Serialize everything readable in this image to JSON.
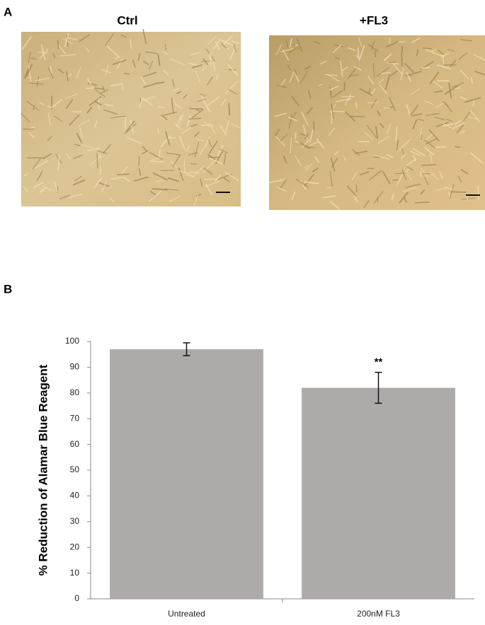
{
  "panel_a": {
    "label": "A",
    "images": [
      {
        "title": "Ctrl"
      },
      {
        "title": "+FL3"
      }
    ]
  },
  "panel_b": {
    "label": "B"
  },
  "chart_data": {
    "type": "bar",
    "y_label": "% Reduction of Alamar Blue Reagent",
    "categories": [
      "Untreated",
      "200nM FL3"
    ],
    "values": [
      97,
      82
    ],
    "errors": [
      2.5,
      6
    ],
    "annotation": "**",
    "color": "#aeaaaa",
    "ylim": [
      0,
      100
    ],
    "yticks": [
      0,
      10,
      20,
      30,
      40,
      50,
      60,
      70,
      80,
      90,
      100
    ]
  }
}
